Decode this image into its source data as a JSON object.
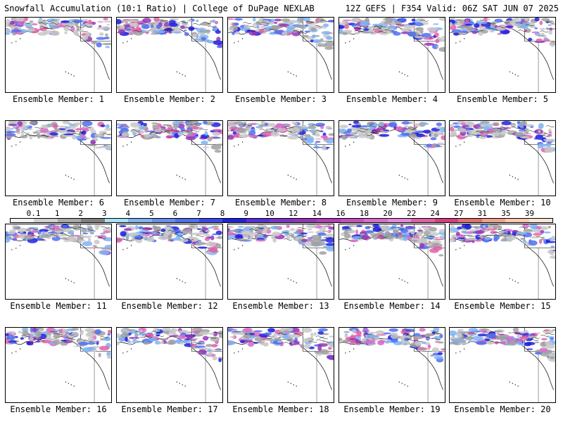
{
  "header": {
    "title_left": "Snowfall Accumulation (10:1 Ratio) | College of DuPage NEXLAB",
    "title_right": "12Z GEFS | F354 Valid: 06Z SAT JUN 07 2025"
  },
  "panels": [
    {
      "label": "Ensemble Member: 1"
    },
    {
      "label": "Ensemble Member: 2"
    },
    {
      "label": "Ensemble Member: 3"
    },
    {
      "label": "Ensemble Member: 4"
    },
    {
      "label": "Ensemble Member: 5"
    },
    {
      "label": "Ensemble Member: 6"
    },
    {
      "label": "Ensemble Member: 7"
    },
    {
      "label": "Ensemble Member: 8"
    },
    {
      "label": "Ensemble Member: 9"
    },
    {
      "label": "Ensemble Member: 10"
    },
    {
      "label": "Ensemble Member: 11"
    },
    {
      "label": "Ensemble Member: 12"
    },
    {
      "label": "Ensemble Member: 13"
    },
    {
      "label": "Ensemble Member: 14"
    },
    {
      "label": "Ensemble Member: 15"
    },
    {
      "label": "Ensemble Member: 16"
    },
    {
      "label": "Ensemble Member: 17"
    },
    {
      "label": "Ensemble Member: 18"
    },
    {
      "label": "Ensemble Member: 19"
    },
    {
      "label": "Ensemble Member: 20"
    }
  ],
  "colorbar": {
    "labels": [
      "0.1",
      "1",
      "2",
      "3",
      "4",
      "5",
      "6",
      "7",
      "8",
      "9",
      "10",
      "12",
      "14",
      "16",
      "18",
      "20",
      "22",
      "24",
      "27",
      "31",
      "35",
      "39"
    ],
    "colors": [
      "#f2f2f2",
      "#d0d0d0",
      "#a8a8a8",
      "#808080",
      "#a6e1f5",
      "#7fb3f2",
      "#6b8ff0",
      "#4f6ef0",
      "#3a48ec",
      "#2020e0",
      "#5a2fd8",
      "#7c34c8",
      "#9634b8",
      "#b43cba",
      "#c850be",
      "#d86ccc",
      "#e488d8",
      "#e060a8",
      "#d83c80",
      "#e07070",
      "#f0a090",
      "#f8c8b0",
      "#fce4d4"
    ]
  }
}
